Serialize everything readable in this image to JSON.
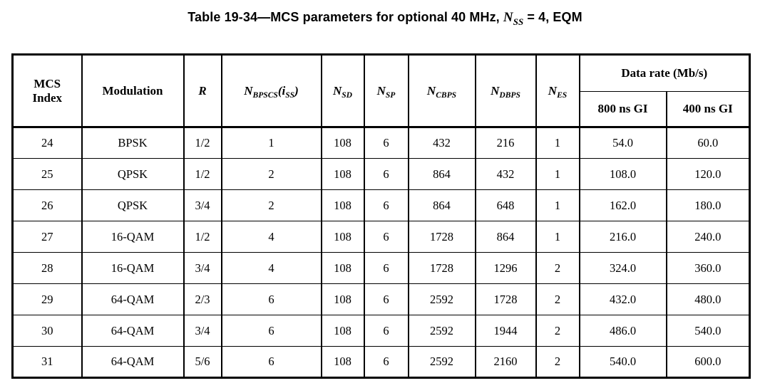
{
  "page": {
    "background": "#ffffff",
    "text_color": "#000000"
  },
  "title": {
    "prefix": "Table 19-34—MCS parameters for optional 40 MHz, ",
    "nss_symbol": "N",
    "nss_sub": "SS",
    "suffix": " = 4, EQM"
  },
  "table": {
    "header": {
      "mcs_index": "MCS\nIndex",
      "modulation": "Modulation",
      "rate": "R",
      "n_bpscs": {
        "base": "N",
        "sub": "BPSCS",
        "arg_open": "(i",
        "arg_sub": "SS",
        "arg_close": ")"
      },
      "n_sd": {
        "base": "N",
        "sub": "SD"
      },
      "n_sp": {
        "base": "N",
        "sub": "SP"
      },
      "n_cbps": {
        "base": "N",
        "sub": "CBPS"
      },
      "n_dbps": {
        "base": "N",
        "sub": "DBPS"
      },
      "n_es": {
        "base": "N",
        "sub": "ES"
      },
      "data_rate": "Data rate (Mb/s)",
      "gi_800": "800 ns GI",
      "gi_400": "400 ns GI"
    },
    "rows": [
      [
        "24",
        "BPSK",
        "1/2",
        "1",
        "108",
        "6",
        "432",
        "216",
        "1",
        "54.0",
        "60.0"
      ],
      [
        "25",
        "QPSK",
        "1/2",
        "2",
        "108",
        "6",
        "864",
        "432",
        "1",
        "108.0",
        "120.0"
      ],
      [
        "26",
        "QPSK",
        "3/4",
        "2",
        "108",
        "6",
        "864",
        "648",
        "1",
        "162.0",
        "180.0"
      ],
      [
        "27",
        "16-QAM",
        "1/2",
        "4",
        "108",
        "6",
        "1728",
        "864",
        "1",
        "216.0",
        "240.0"
      ],
      [
        "28",
        "16-QAM",
        "3/4",
        "4",
        "108",
        "6",
        "1728",
        "1296",
        "2",
        "324.0",
        "360.0"
      ],
      [
        "29",
        "64-QAM",
        "2/3",
        "6",
        "108",
        "6",
        "2592",
        "1728",
        "2",
        "432.0",
        "480.0"
      ],
      [
        "30",
        "64-QAM",
        "3/4",
        "6",
        "108",
        "6",
        "2592",
        "1944",
        "2",
        "486.0",
        "540.0"
      ],
      [
        "31",
        "64-QAM",
        "5/6",
        "6",
        "108",
        "6",
        "2592",
        "2160",
        "2",
        "540.0",
        "600.0"
      ]
    ]
  }
}
